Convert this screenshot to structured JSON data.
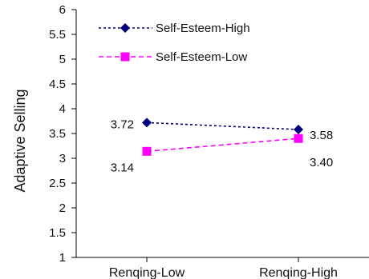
{
  "chart_data": {
    "type": "line",
    "categories": [
      "Renqing-Low",
      "Renqing-High"
    ],
    "series": [
      {
        "name": "Self-Esteem-High",
        "values": [
          3.72,
          3.58
        ],
        "labels": [
          "3.72",
          "3.58"
        ],
        "color": "#000080",
        "marker": "diamond",
        "line_style": "dotted"
      },
      {
        "name": "Self-Esteem-Low",
        "values": [
          3.14,
          3.4
        ],
        "labels": [
          "3.14",
          "3.40"
        ],
        "color": "#ff00ff",
        "marker": "square",
        "line_style": "dashed"
      }
    ],
    "ylabel": "Adaptive Selling",
    "xlabel": "",
    "ylim": [
      1,
      6
    ],
    "yticks": [
      "1",
      "1.5",
      "2",
      "2.5",
      "3",
      "3.5",
      "4",
      "4.5",
      "5",
      "5.5",
      "6"
    ],
    "grid": false,
    "legend": "top-left"
  }
}
